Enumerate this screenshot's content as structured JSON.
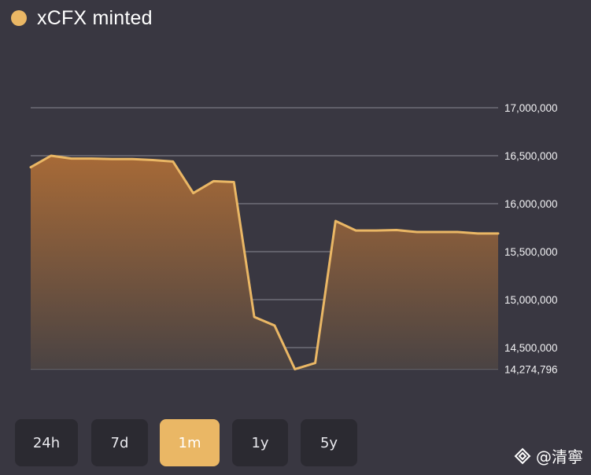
{
  "legend": {
    "label": "xCFX minted",
    "color": "#eab765"
  },
  "range_buttons": [
    {
      "label": "24h",
      "active": false
    },
    {
      "label": "7d",
      "active": false
    },
    {
      "label": "1m",
      "active": true
    },
    {
      "label": "1y",
      "active": false
    },
    {
      "label": "5y",
      "active": false
    }
  ],
  "watermark": {
    "text": "@清寧",
    "icon": "diamond-logo-icon"
  },
  "chart_data": {
    "type": "area",
    "series": [
      {
        "name": "xCFX minted",
        "color": "#eab765",
        "values": [
          16380000,
          16500000,
          16470000,
          16470000,
          16465000,
          16465000,
          16455000,
          16440000,
          16110000,
          16235000,
          16225000,
          14820000,
          14730000,
          14274796,
          14340000,
          15820000,
          15720000,
          15720000,
          15725000,
          15705000,
          15705000,
          15705000,
          15690000,
          15690000
        ]
      }
    ],
    "y_ticks": [
      {
        "value": 17000000,
        "label": "17,000,000"
      },
      {
        "value": 16500000,
        "label": "16,500,000"
      },
      {
        "value": 16000000,
        "label": "16,000,000"
      },
      {
        "value": 15500000,
        "label": "15,500,000"
      },
      {
        "value": 15000000,
        "label": "15,000,000"
      },
      {
        "value": 14500000,
        "label": "14,500,000"
      },
      {
        "value": 14274796,
        "label": "14,274,796"
      }
    ],
    "ylim": [
      14274796,
      17000000
    ],
    "grid": true,
    "xlabel": "",
    "ylabel": "",
    "title": ""
  }
}
